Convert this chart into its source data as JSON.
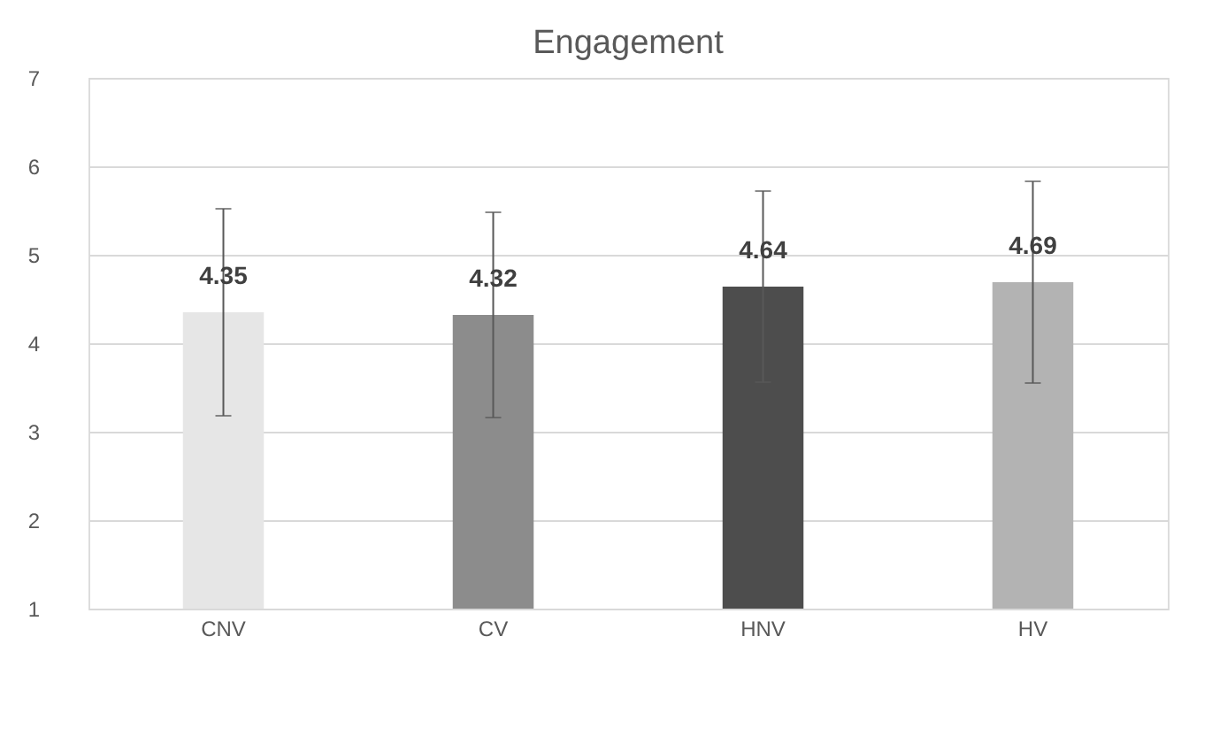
{
  "chart_data": {
    "type": "bar",
    "title": "Engagement",
    "categories": [
      "CNV",
      "CV",
      "HNV",
      "HV"
    ],
    "values": [
      4.35,
      4.32,
      4.64,
      4.69
    ],
    "colors": [
      "#e6e6e6",
      "#8c8c8c",
      "#4d4d4d",
      "#b3b3b3"
    ],
    "errors": [
      1.17,
      1.16,
      1.08,
      1.14
    ],
    "data_labels": true,
    "ylim": [
      1,
      7
    ],
    "yticks": [
      1,
      2,
      3,
      4,
      5,
      6,
      7
    ],
    "grid": "y"
  }
}
